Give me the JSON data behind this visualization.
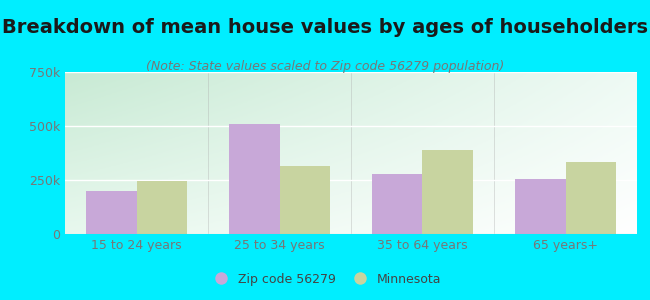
{
  "title": "Breakdown of mean house values by ages of householders",
  "subtitle": "(Note: State values scaled to Zip code 56279 population)",
  "categories": [
    "15 to 24 years",
    "25 to 34 years",
    "35 to 64 years",
    "65 years+"
  ],
  "zip_values": [
    200000,
    510000,
    280000,
    255000
  ],
  "mn_values": [
    245000,
    315000,
    390000,
    335000
  ],
  "zip_color": "#c8a8d8",
  "mn_color": "#c8d4a0",
  "background_color": "#00eeff",
  "ylim": [
    0,
    750000
  ],
  "yticks": [
    0,
    250000,
    500000,
    750000
  ],
  "ytick_labels": [
    "0",
    "250k",
    "500k",
    "750k"
  ],
  "legend_zip": "Zip code 56279",
  "legend_mn": "Minnesota",
  "bar_width": 0.35,
  "title_fontsize": 14,
  "subtitle_fontsize": 9,
  "tick_fontsize": 9,
  "legend_fontsize": 9
}
